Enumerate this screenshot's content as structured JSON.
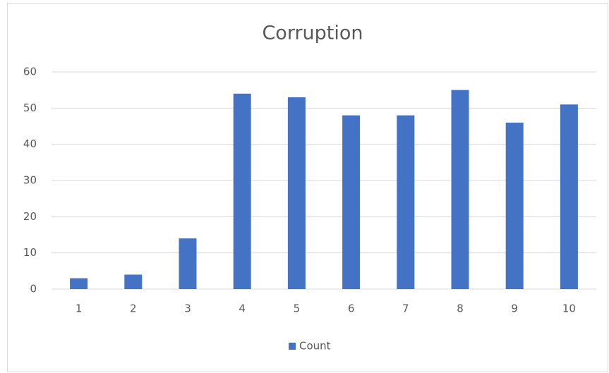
{
  "chart_data": {
    "type": "bar",
    "title": "Corruption",
    "categories": [
      "1",
      "2",
      "3",
      "4",
      "5",
      "6",
      "7",
      "8",
      "9",
      "10"
    ],
    "series": [
      {
        "name": "Count",
        "color": "#4472c4",
        "values": [
          3,
          4,
          14,
          54,
          53,
          48,
          48,
          55,
          46,
          51
        ]
      }
    ],
    "ylim": [
      0,
      60
    ],
    "yticks": [
      0,
      10,
      20,
      30,
      40,
      50,
      60
    ],
    "grid": true,
    "legend": "bottom"
  }
}
